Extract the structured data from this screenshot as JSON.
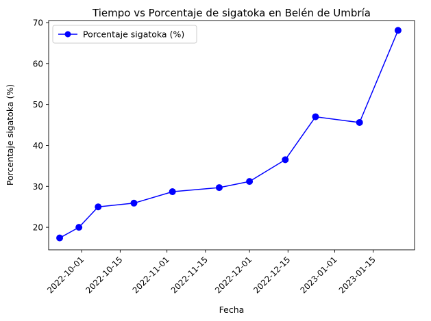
{
  "chart_data": {
    "type": "line",
    "title": "Tiempo vs Porcentaje de sigatoka en Belén de Umbría",
    "xlabel": "Fecha",
    "ylabel": "Porcentaje sigatoka (%)",
    "x_type": "date",
    "xlim": [
      "2022-09-19",
      "2023-01-30"
    ],
    "ylim": [
      14.5,
      70.5
    ],
    "x_ticks": [
      "2022-10-01",
      "2022-10-15",
      "2022-11-01",
      "2022-11-15",
      "2022-12-01",
      "2022-12-15",
      "2023-01-01",
      "2023-01-15"
    ],
    "y_ticks": [
      20,
      30,
      40,
      50,
      60,
      70
    ],
    "grid": false,
    "legend_position": "upper-left",
    "series": [
      {
        "name": "Porcentaje sigatoka (%)",
        "color": "#0000ff",
        "marker": "circle",
        "x": [
          "2022-09-23",
          "2022-09-30",
          "2022-10-07",
          "2022-10-20",
          "2022-11-03",
          "2022-11-20",
          "2022-12-01",
          "2022-12-14",
          "2022-12-25",
          "2023-01-10",
          "2023-01-24"
        ],
        "y": [
          17.4,
          20.0,
          25.0,
          25.9,
          28.7,
          29.7,
          31.2,
          36.5,
          47.0,
          45.6,
          68.1
        ]
      }
    ]
  }
}
